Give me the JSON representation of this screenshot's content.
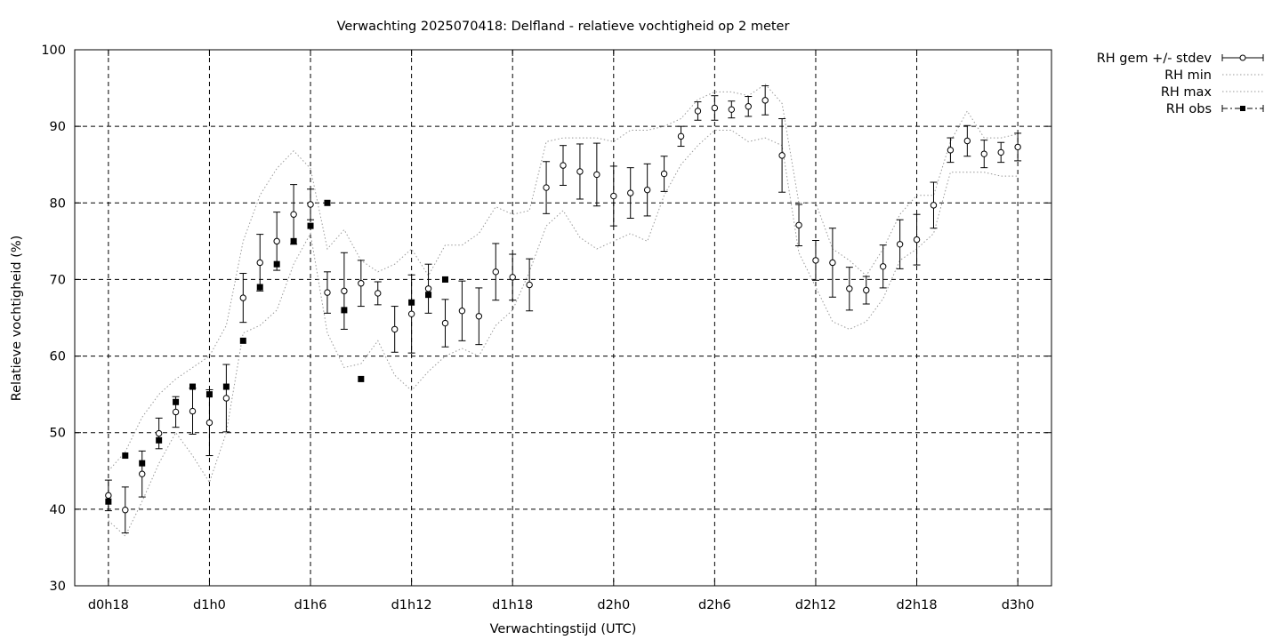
{
  "chart_data": {
    "type": "line",
    "title": "Verwachting 2025070418: Delfland - relatieve vochtigheid op 2 meter",
    "xlabel": "Verwachtingstijd (UTC)",
    "ylabel": "Relatieve vochtigheid (%)",
    "x_unit": "hours since d0h0",
    "xlim": [
      16,
      74
    ],
    "ylim": [
      30,
      100
    ],
    "grid": true,
    "legend_position": "top-right outside",
    "x_ticks": [
      {
        "x": 18,
        "label": "d0h18"
      },
      {
        "x": 24,
        "label": "d1h0"
      },
      {
        "x": 30,
        "label": "d1h6"
      },
      {
        "x": 36,
        "label": "d1h12"
      },
      {
        "x": 42,
        "label": "d1h18"
      },
      {
        "x": 48,
        "label": "d2h0"
      },
      {
        "x": 54,
        "label": "d2h6"
      },
      {
        "x": 60,
        "label": "d2h12"
      },
      {
        "x": 66,
        "label": "d2h18"
      },
      {
        "x": 72,
        "label": "d3h0"
      }
    ],
    "y_ticks": [
      30,
      40,
      50,
      60,
      70,
      80,
      90,
      100
    ],
    "legend": [
      {
        "label": "RH gem +/- stdev",
        "style": "errorbar"
      },
      {
        "label": "RH min",
        "style": "dotted"
      },
      {
        "label": "RH max",
        "style": "dotted"
      },
      {
        "label": "RH obs",
        "style": "dashdot-square"
      }
    ],
    "series": [
      {
        "name": "RH gem +/- stdev",
        "x": [
          18,
          19,
          20,
          21,
          22,
          23,
          24,
          25,
          26,
          27,
          28,
          29,
          30,
          31,
          32,
          33,
          34,
          35,
          36,
          37,
          38,
          39,
          40,
          41,
          42,
          43,
          44,
          45,
          46,
          47,
          48,
          49,
          50,
          51,
          52,
          53,
          54,
          55,
          56,
          57,
          58,
          59,
          60,
          61,
          62,
          63,
          64,
          65,
          66,
          67,
          68,
          69,
          70,
          71,
          72
        ],
        "mean": [
          41.8,
          39.9,
          44.6,
          49.9,
          52.7,
          52.8,
          51.3,
          54.5,
          67.6,
          72.2,
          75,
          78.5,
          79.8,
          68.3,
          68.5,
          69.5,
          68.2,
          63.5,
          65.5,
          68.8,
          64.3,
          65.9,
          65.2,
          71,
          70.3,
          69.3,
          82,
          84.9,
          84.1,
          83.7,
          80.9,
          81.3,
          81.7,
          83.8,
          88.7,
          92,
          92.4,
          92.2,
          92.6,
          93.4,
          86.2,
          77.1,
          72.5,
          72.2,
          68.8,
          68.6,
          71.7,
          74.6,
          75.2,
          79.7,
          86.9,
          88.1,
          86.4,
          86.6,
          87.3
        ],
        "sd": [
          2,
          3,
          3,
          2,
          2,
          3,
          4.3,
          4.4,
          3.2,
          3.7,
          3.8,
          3.9,
          2,
          2.7,
          5,
          3,
          1.5,
          3,
          5.1,
          3.2,
          3.1,
          3.9,
          3.7,
          3.7,
          3,
          3.4,
          3.4,
          2.6,
          3.6,
          4.1,
          3.9,
          3.3,
          3.4,
          2.3,
          1.3,
          1.2,
          1.6,
          1.1,
          1.3,
          1.9,
          4.8,
          2.7,
          2.6,
          4.5,
          2.8,
          1.8,
          2.8,
          3.2,
          3.3,
          3,
          1.6,
          2,
          1.8,
          1.3,
          1.8
        ]
      },
      {
        "name": "RH min",
        "x": [
          18,
          19,
          20,
          21,
          22,
          23,
          24,
          25,
          26,
          27,
          28,
          29,
          30,
          31,
          32,
          33,
          34,
          35,
          36,
          37,
          38,
          39,
          40,
          41,
          42,
          43,
          44,
          45,
          46,
          47,
          48,
          49,
          50,
          51,
          52,
          53,
          54,
          55,
          56,
          57,
          58,
          59,
          60,
          61,
          62,
          63,
          64,
          65,
          66,
          67,
          68,
          69,
          70,
          71,
          72
        ],
        "y": [
          38.5,
          36.5,
          41,
          46,
          50,
          47,
          43.5,
          50,
          63,
          64,
          66,
          72,
          76,
          63,
          58.5,
          59,
          62,
          57.5,
          55.5,
          58,
          60,
          61,
          60,
          64,
          66,
          71,
          77,
          79,
          75.5,
          74,
          75,
          76,
          75,
          81,
          85,
          87.5,
          89.5,
          89.5,
          88,
          88.5,
          87.5,
          73.5,
          69,
          64.5,
          63.5,
          64.5,
          67.5,
          72.5,
          74,
          76,
          84,
          84,
          84,
          83.5,
          83.5
        ]
      },
      {
        "name": "RH max",
        "x": [
          18,
          19,
          20,
          21,
          22,
          23,
          24,
          25,
          26,
          27,
          28,
          29,
          30,
          31,
          32,
          33,
          34,
          35,
          36,
          37,
          38,
          39,
          40,
          41,
          42,
          43,
          44,
          45,
          46,
          47,
          48,
          49,
          50,
          51,
          52,
          53,
          54,
          55,
          56,
          57,
          58,
          59,
          60,
          61,
          62,
          63,
          64,
          65,
          66,
          67,
          68,
          69,
          70,
          71,
          72
        ],
        "y": [
          45,
          47.5,
          52,
          55,
          57,
          58.5,
          60,
          64,
          75,
          81,
          84.5,
          86.8,
          84.5,
          74,
          76.5,
          72.5,
          71,
          72,
          74,
          70.5,
          74.5,
          74.5,
          76,
          79.5,
          78.5,
          79,
          88,
          88.5,
          88.5,
          88.5,
          88,
          89.5,
          89.5,
          90,
          91,
          93.5,
          94.5,
          94.5,
          94,
          95.5,
          93,
          80,
          80,
          74,
          72.5,
          70.5,
          74,
          78.5,
          81,
          81,
          88,
          92,
          88.5,
          88.5,
          89
        ]
      },
      {
        "name": "RH obs",
        "x": [
          18,
          19,
          20,
          21,
          22,
          23,
          24,
          25,
          26,
          27,
          28,
          29,
          30,
          31,
          32,
          33,
          35,
          36,
          37,
          38
        ],
        "y": [
          41,
          47,
          46,
          49,
          54,
          56,
          55,
          56,
          62,
          69,
          72,
          75,
          77,
          80,
          66,
          57,
          null,
          67,
          68,
          70
        ]
      }
    ]
  }
}
